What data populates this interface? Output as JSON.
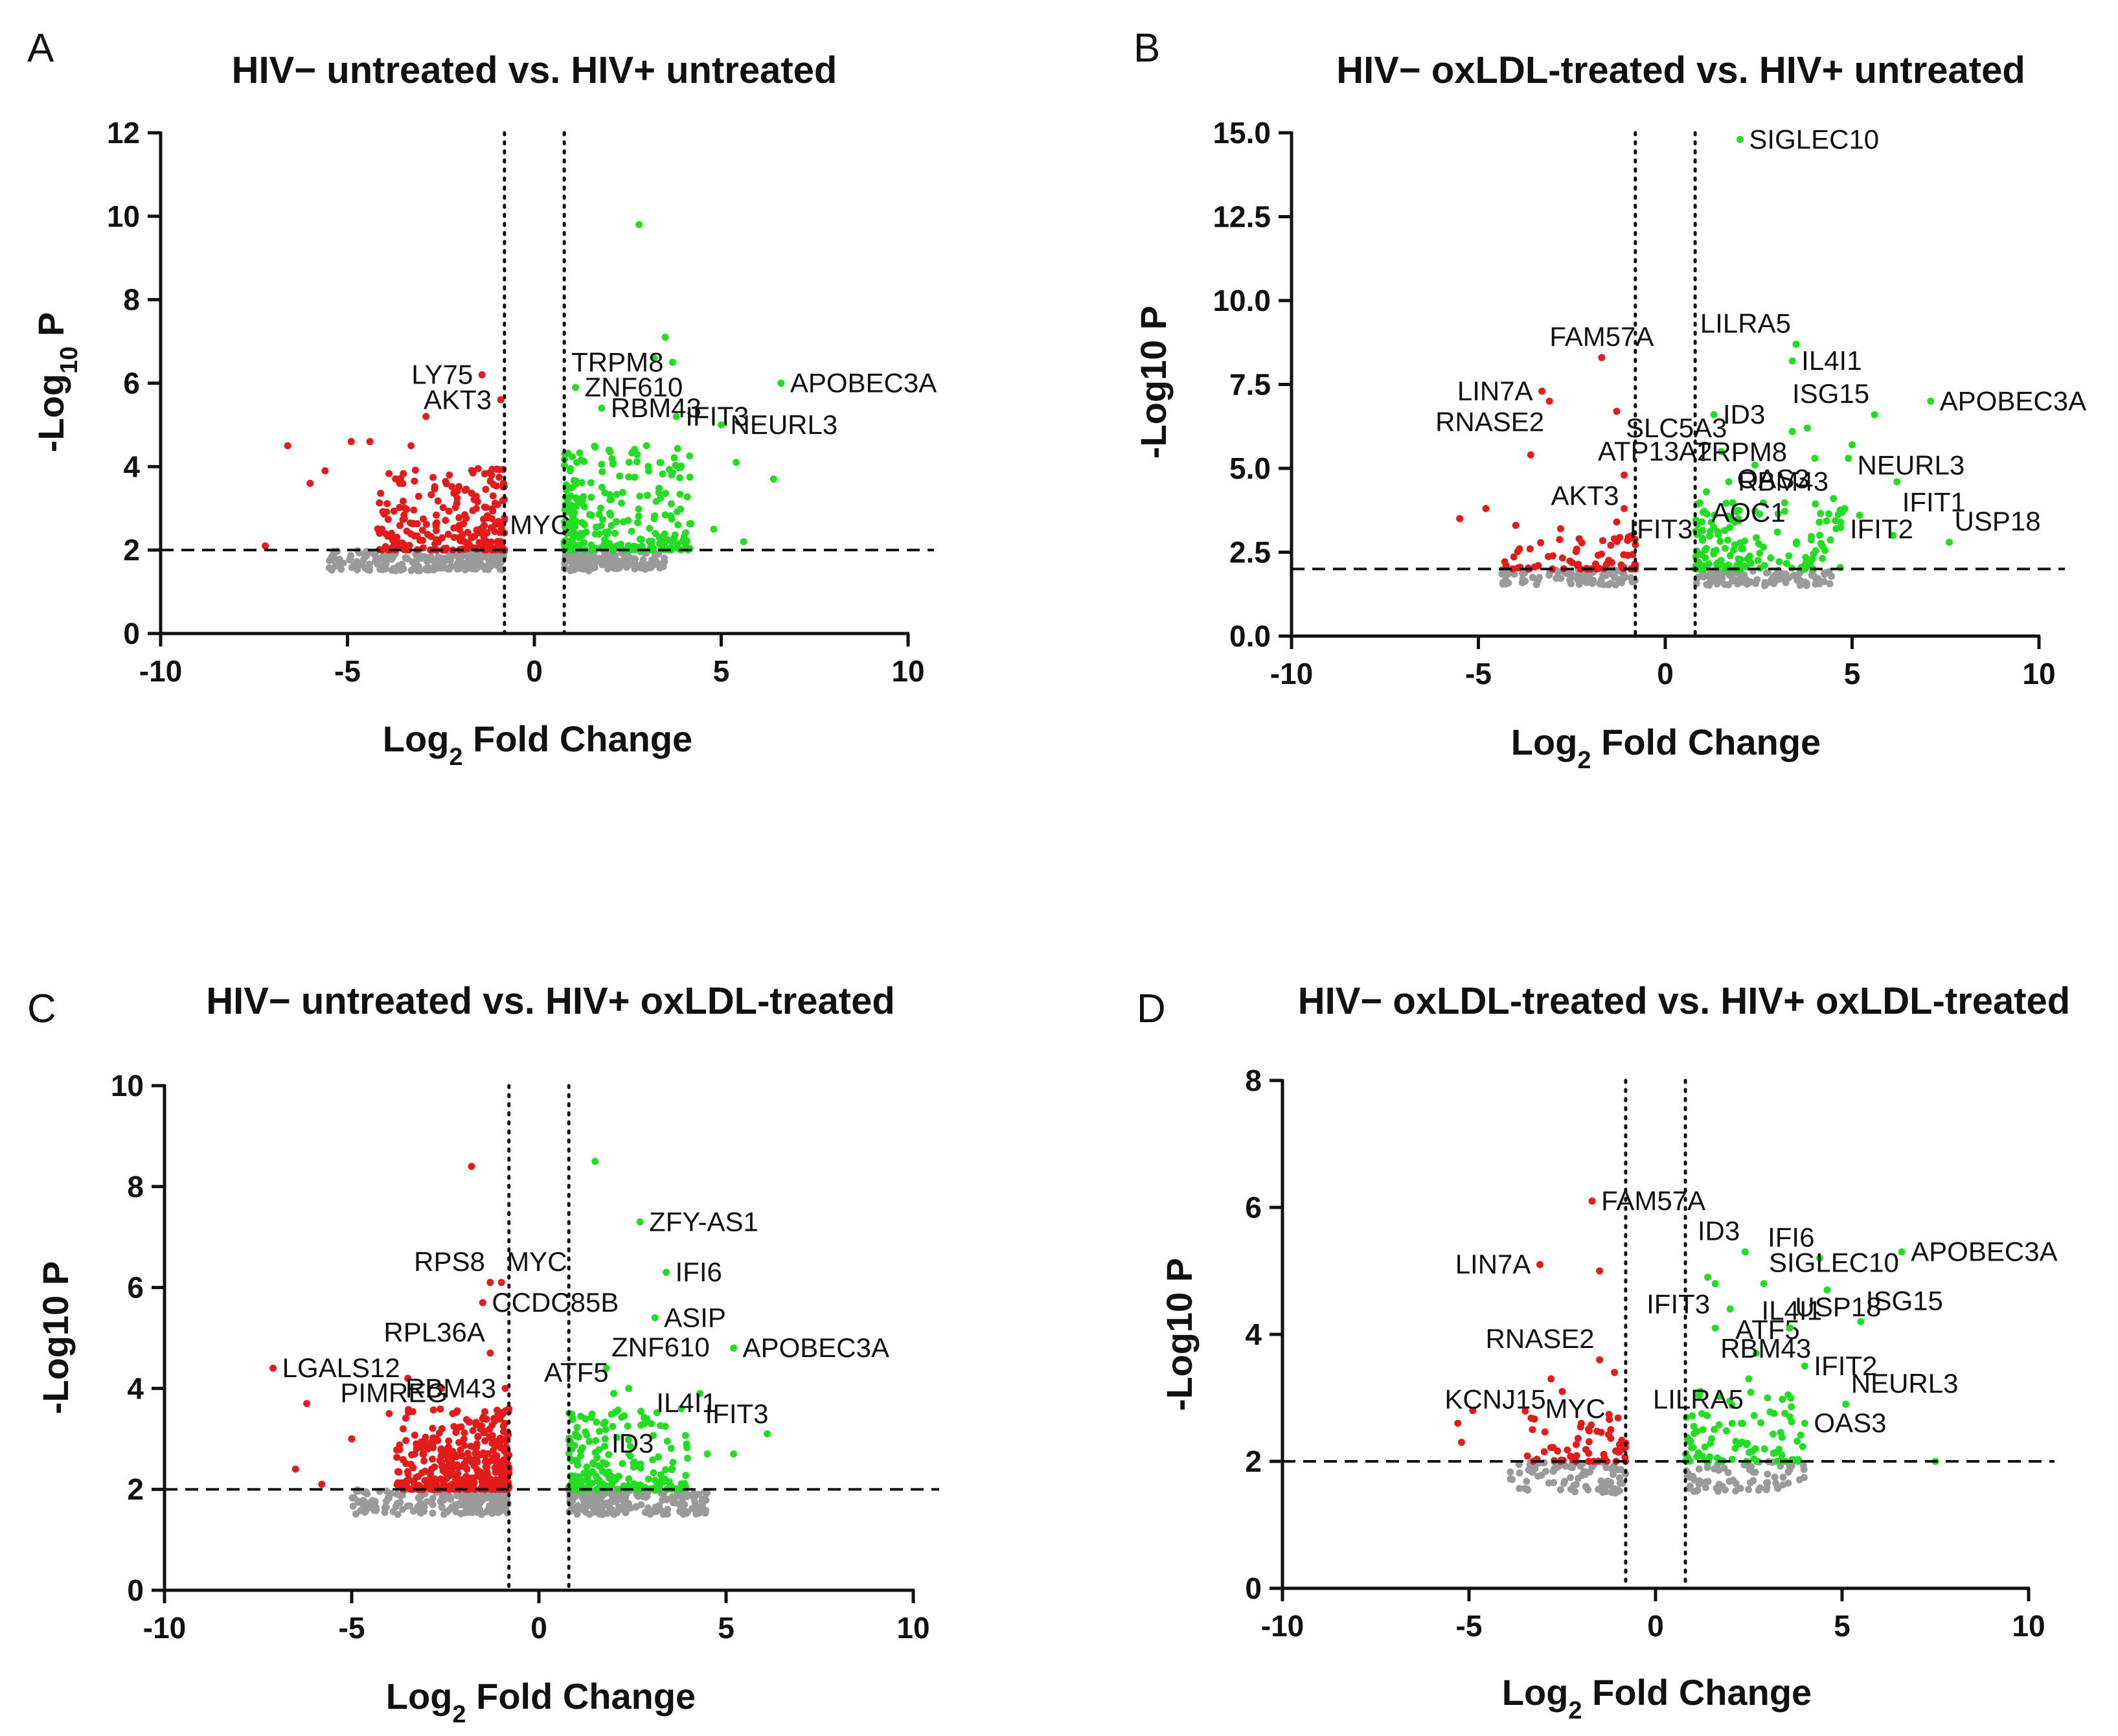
{
  "colors": {
    "up": "#22dd22",
    "down": "#e31b1b",
    "ns": "#9a9a9a",
    "axis": "#111111"
  },
  "chart_data": [
    {
      "type": "scatter",
      "id": "A",
      "panel_label": "A",
      "title": "HIV− untreated vs. HIV+ untreated",
      "xlabel_main": "Log",
      "xlabel_sub": "2",
      "xlabel_rest": " Fold Change",
      "ylabel_main": "-Log",
      "ylabel_sub": "10",
      "ylabel_rest": " P",
      "xlim": [
        -10,
        10
      ],
      "ylim": [
        0,
        12
      ],
      "xticks": [
        -10,
        -5,
        0,
        5,
        10
      ],
      "xtick_labels": [
        "-10",
        "-5",
        "0",
        "5",
        "10"
      ],
      "yticks": [
        0,
        2,
        4,
        6,
        8,
        10,
        12
      ],
      "ytick_labels": [
        "0",
        "2",
        "4",
        "6",
        "8",
        "10",
        "12"
      ],
      "threshold_fc": 0.8,
      "threshold_p": 2,
      "seed": 11,
      "labeled_points": [
        {
          "gene": "LY75",
          "x": -1.4,
          "y": 6.2,
          "dir": "down",
          "label_pos": "left"
        },
        {
          "gene": "AKT3",
          "x": -0.9,
          "y": 5.6,
          "dir": "down",
          "label_pos": "left"
        },
        {
          "gene": "MYC",
          "x": -0.9,
          "y": 2.6,
          "dir": "down",
          "label_pos": "right"
        },
        {
          "gene": "ZNF610",
          "x": 1.1,
          "y": 5.9,
          "dir": "up",
          "label_pos": "right"
        },
        {
          "gene": "TRPM8",
          "x": 3.7,
          "y": 6.5,
          "dir": "up",
          "label_pos": "left"
        },
        {
          "gene": "RBM43",
          "x": 1.8,
          "y": 5.4,
          "dir": "up",
          "label_pos": "right"
        },
        {
          "gene": "IFIT3",
          "x": 3.8,
          "y": 5.2,
          "dir": "up",
          "label_pos": "right"
        },
        {
          "gene": "APOBEC3A",
          "x": 6.6,
          "y": 6.0,
          "dir": "up",
          "label_pos": "right"
        },
        {
          "gene": "NEURL3",
          "x": 5.0,
          "y": 5.0,
          "dir": "up",
          "label_pos": "right"
        }
      ],
      "up_points": [
        [
          2.8,
          9.8
        ],
        [
          3.5,
          7.1
        ],
        [
          3.2,
          6.6
        ],
        [
          6.4,
          3.7
        ],
        [
          5.4,
          4.1
        ],
        [
          4.8,
          2.5
        ],
        [
          5.6,
          2.2
        ],
        [
          3.0,
          4.5
        ]
      ],
      "down_points": [
        [
          -6.6,
          4.5
        ],
        [
          -5.6,
          3.9
        ],
        [
          -4.9,
          4.6
        ],
        [
          -4.4,
          4.6
        ],
        [
          -3.3,
          4.5
        ],
        [
          -2.9,
          5.2
        ],
        [
          -3.6,
          3.6
        ],
        [
          -6.0,
          3.6
        ],
        [
          -7.2,
          2.1
        ]
      ],
      "counts": {
        "up": 260,
        "down": 240,
        "ns": 380
      },
      "ranges": {
        "up": [
          0.8,
          4.2,
          2.0,
          4.5
        ],
        "down": [
          -4.2,
          -0.8,
          2.0,
          4.0
        ],
        "ns": [
          -5.5,
          3.5,
          1.5,
          2.0
        ]
      }
    },
    {
      "type": "scatter",
      "id": "B",
      "panel_label": "B",
      "title": "HIV− oxLDL-treated vs. HIV+ untreated",
      "xlabel_main": "Log",
      "xlabel_sub": "2",
      "xlabel_rest": " Fold Change",
      "ylabel_main": "-Log10 P",
      "ylabel_sub": "",
      "ylabel_rest": "",
      "xlim": [
        -10,
        10
      ],
      "ylim": [
        0,
        15
      ],
      "xticks": [
        -10,
        -5,
        0,
        5,
        10
      ],
      "xtick_labels": [
        "-10",
        "-5",
        "0",
        "5",
        "10"
      ],
      "yticks": [
        0,
        2.5,
        5,
        7.5,
        10,
        12.5,
        15
      ],
      "ytick_labels": [
        "0.0",
        "2.5",
        "5.0",
        "7.5",
        "10.0",
        "12.5",
        "15.0"
      ],
      "threshold_fc": 0.8,
      "threshold_p": 2,
      "seed": 23,
      "labeled_points": [
        {
          "gene": "SIGLEC10",
          "x": 2.0,
          "y": 14.8,
          "dir": "up",
          "label_pos": "right"
        },
        {
          "gene": "FAM57A",
          "x": -1.7,
          "y": 8.3,
          "dir": "down",
          "label_pos": "above"
        },
        {
          "gene": "LIN7A",
          "x": -3.3,
          "y": 7.3,
          "dir": "down",
          "label_pos": "left"
        },
        {
          "gene": "SLC5A3",
          "x": -1.3,
          "y": 6.7,
          "dir": "down",
          "label_pos": "rightbelow"
        },
        {
          "gene": "RNASE2",
          "x": -3.1,
          "y": 7.0,
          "dir": "down",
          "label_pos": "belowleft"
        },
        {
          "gene": "LILRA5",
          "x": 3.5,
          "y": 8.7,
          "dir": "up",
          "label_pos": "aboveleft"
        },
        {
          "gene": "IL4I1",
          "x": 3.4,
          "y": 8.2,
          "dir": "up",
          "label_pos": "right"
        },
        {
          "gene": "ID3",
          "x": 1.3,
          "y": 6.6,
          "dir": "up",
          "label_pos": "right"
        },
        {
          "gene": "ISG15",
          "x": 5.6,
          "y": 6.6,
          "dir": "up",
          "label_pos": "aboveleft"
        },
        {
          "gene": "APOBEC3A",
          "x": 7.1,
          "y": 7.0,
          "dir": "up",
          "label_pos": "right"
        },
        {
          "gene": "ATP13A2",
          "x": 1.5,
          "y": 5.5,
          "dir": "up",
          "label_pos": "left"
        },
        {
          "gene": "TRPM8",
          "x": 3.4,
          "y": 6.1,
          "dir": "up",
          "label_pos": "belowleft"
        },
        {
          "gene": "NEURL3",
          "x": 5.0,
          "y": 5.7,
          "dir": "up",
          "label_pos": "belowright"
        },
        {
          "gene": "AKT3",
          "x": -1.1,
          "y": 4.8,
          "dir": "down",
          "label_pos": "belowleft"
        },
        {
          "gene": "RBM43",
          "x": 1.7,
          "y": 4.6,
          "dir": "up",
          "label_pos": "right"
        },
        {
          "gene": "OAS3",
          "x": 4.0,
          "y": 5.3,
          "dir": "up",
          "label_pos": "belowleft"
        },
        {
          "gene": "IFIT1",
          "x": 6.2,
          "y": 4.6,
          "dir": "up",
          "label_pos": "belowright"
        },
        {
          "gene": "IFIT3",
          "x": -1.1,
          "y": 3.8,
          "dir": "down",
          "label_pos": "belowright"
        },
        {
          "gene": "AOC1",
          "x": 1.1,
          "y": 4.3,
          "dir": "up",
          "label_pos": "belowright"
        },
        {
          "gene": "IFIT2",
          "x": 4.8,
          "y": 3.8,
          "dir": "up",
          "label_pos": "belowright"
        },
        {
          "gene": "USP18",
          "x": 7.6,
          "y": 2.8,
          "dir": "up",
          "label_pos": "aboveright"
        }
      ],
      "up_points": [
        [
          4.9,
          5.3
        ],
        [
          3.8,
          6.2
        ],
        [
          2.4,
          5.1
        ],
        [
          4.5,
          4.1
        ],
        [
          5.2,
          3.6
        ],
        [
          3.0,
          3.1
        ],
        [
          6.1,
          3.0
        ]
      ],
      "down_points": [
        [
          -3.6,
          5.4
        ],
        [
          -5.5,
          3.5
        ],
        [
          -4.8,
          3.8
        ],
        [
          -4.0,
          3.3
        ],
        [
          -2.8,
          3.2
        ],
        [
          -3.9,
          2.6
        ],
        [
          -1.3,
          3.4
        ]
      ],
      "counts": {
        "up": 150,
        "down": 70,
        "ns": 200
      },
      "ranges": {
        "up": [
          0.8,
          4.8,
          2.0,
          4.0
        ],
        "down": [
          -4.3,
          -0.8,
          2.0,
          3.0
        ],
        "ns": [
          -4.5,
          4.5,
          1.5,
          2.0
        ]
      }
    },
    {
      "type": "scatter",
      "id": "C",
      "panel_label": "C",
      "title": "HIV− untreated vs. HIV+ oxLDL-treated",
      "xlabel_main": "Log",
      "xlabel_sub": "2",
      "xlabel_rest": " Fold Change",
      "ylabel_main": "-Log10 P",
      "ylabel_sub": "",
      "ylabel_rest": "",
      "xlim": [
        -10,
        10
      ],
      "ylim": [
        0,
        10
      ],
      "xticks": [
        -10,
        -5,
        0,
        5,
        10
      ],
      "xtick_labels": [
        "-10",
        "-5",
        "0",
        "5",
        "10"
      ],
      "yticks": [
        0,
        2,
        4,
        6,
        8,
        10
      ],
      "ytick_labels": [
        "0",
        "2",
        "4",
        "6",
        "8",
        "10"
      ],
      "threshold_fc": 0.8,
      "threshold_p": 2,
      "seed": 37,
      "labeled_points": [
        {
          "gene": "ZFY-AS1",
          "x": 2.7,
          "y": 7.3,
          "dir": "up",
          "label_pos": "right"
        },
        {
          "gene": "RPS8",
          "x": -1.3,
          "y": 6.1,
          "dir": "down",
          "label_pos": "aboveleft"
        },
        {
          "gene": "MYC",
          "x": -1.0,
          "y": 6.1,
          "dir": "down",
          "label_pos": "aboveright"
        },
        {
          "gene": "IFI6",
          "x": 3.4,
          "y": 6.3,
          "dir": "up",
          "label_pos": "right"
        },
        {
          "gene": "CCDC85B",
          "x": -1.5,
          "y": 5.7,
          "dir": "down",
          "label_pos": "right"
        },
        {
          "gene": "ASIP",
          "x": 3.1,
          "y": 5.4,
          "dir": "up",
          "label_pos": "right"
        },
        {
          "gene": "LGALS12",
          "x": -7.1,
          "y": 4.4,
          "dir": "down",
          "label_pos": "right"
        },
        {
          "gene": "RPL36A",
          "x": -1.3,
          "y": 4.7,
          "dir": "down",
          "label_pos": "aboveleft"
        },
        {
          "gene": "ZNF610",
          "x": 1.8,
          "y": 4.4,
          "dir": "up",
          "label_pos": "aboveright"
        },
        {
          "gene": "APOBEC3A",
          "x": 5.2,
          "y": 4.8,
          "dir": "up",
          "label_pos": "right"
        },
        {
          "gene": "PIMREG",
          "x": -2.3,
          "y": 3.5,
          "dir": "down",
          "label_pos": "aboveleft"
        },
        {
          "gene": "RBM43",
          "x": -0.9,
          "y": 4.0,
          "dir": "down",
          "label_pos": "left"
        },
        {
          "gene": "ATF5",
          "x": 2.0,
          "y": 3.9,
          "dir": "up",
          "label_pos": "aboveleft"
        },
        {
          "gene": "IFIT3",
          "x": 4.3,
          "y": 3.9,
          "dir": "up",
          "label_pos": "belowright"
        },
        {
          "gene": "IL4I1",
          "x": 3.0,
          "y": 3.3,
          "dir": "up",
          "label_pos": "aboveright"
        },
        {
          "gene": "ID3",
          "x": 1.8,
          "y": 2.5,
          "dir": "up",
          "label_pos": "aboveright"
        }
      ],
      "up_points": [
        [
          1.5,
          8.5
        ],
        [
          6.1,
          3.1
        ],
        [
          4.5,
          2.7
        ],
        [
          5.2,
          2.7
        ],
        [
          2.4,
          4.0
        ],
        [
          3.8,
          3.6
        ]
      ],
      "down_points": [
        [
          -1.8,
          8.4
        ],
        [
          -6.2,
          3.7
        ],
        [
          -5.0,
          3.0
        ],
        [
          -4.0,
          3.5
        ],
        [
          -6.5,
          2.4
        ],
        [
          -5.8,
          2.1
        ],
        [
          -3.5,
          4.2
        ],
        [
          -2.6,
          4.0
        ]
      ],
      "counts": {
        "up": 200,
        "down": 420,
        "ns": 420
      },
      "ranges": {
        "up": [
          0.8,
          4.0,
          2.0,
          3.6
        ],
        "down": [
          -3.8,
          -0.8,
          2.0,
          3.6
        ],
        "ns": [
          -5.0,
          4.5,
          1.5,
          2.0
        ]
      }
    },
    {
      "type": "scatter",
      "id": "D",
      "panel_label": "D",
      "title": "HIV− oxLDL-treated vs. HIV+ oxLDL-treated",
      "xlabel_main": "Log",
      "xlabel_sub": "2",
      "xlabel_rest": " Fold Change",
      "ylabel_main": "-Log10 P",
      "ylabel_sub": "",
      "ylabel_rest": "",
      "xlim": [
        -10,
        10
      ],
      "ylim": [
        0,
        8
      ],
      "xticks": [
        -10,
        -5,
        0,
        5,
        10
      ],
      "xtick_labels": [
        "-10",
        "-5",
        "0",
        "5",
        "10"
      ],
      "yticks": [
        0,
        2,
        4,
        6,
        8
      ],
      "ytick_labels": [
        "0",
        "2",
        "4",
        "6",
        "8"
      ],
      "threshold_fc": 0.8,
      "threshold_p": 2,
      "seed": 53,
      "labeled_points": [
        {
          "gene": "FAM57A",
          "x": -1.7,
          "y": 6.1,
          "dir": "down",
          "label_pos": "right"
        },
        {
          "gene": "ID3",
          "x": 2.4,
          "y": 5.3,
          "dir": "up",
          "label_pos": "aboveleft"
        },
        {
          "gene": "IFI6",
          "x": 4.4,
          "y": 5.2,
          "dir": "up",
          "label_pos": "aboveleft"
        },
        {
          "gene": "APOBEC3A",
          "x": 6.6,
          "y": 5.3,
          "dir": "up",
          "label_pos": "right"
        },
        {
          "gene": "LIN7A",
          "x": -3.1,
          "y": 5.1,
          "dir": "down",
          "label_pos": "left"
        },
        {
          "gene": "SIGLEC10",
          "x": 2.9,
          "y": 4.8,
          "dir": "up",
          "label_pos": "aboveright"
        },
        {
          "gene": "IFIT3",
          "x": 1.6,
          "y": 4.8,
          "dir": "up",
          "label_pos": "belowleft"
        },
        {
          "gene": "ATF5",
          "x": 2.0,
          "y": 4.4,
          "dir": "up",
          "label_pos": "belowright"
        },
        {
          "gene": "IL4I1",
          "x": 4.6,
          "y": 4.7,
          "dir": "up",
          "label_pos": "belowleft"
        },
        {
          "gene": "ISG15",
          "x": 5.5,
          "y": 4.2,
          "dir": "up",
          "label_pos": "aboveright"
        },
        {
          "gene": "RNASE2",
          "x": -1.5,
          "y": 3.6,
          "dir": "down",
          "label_pos": "aboveleft"
        },
        {
          "gene": "RBM43",
          "x": 1.6,
          "y": 4.1,
          "dir": "up",
          "label_pos": "belowright"
        },
        {
          "gene": "USP18",
          "x": 3.6,
          "y": 4.1,
          "dir": "up",
          "label_pos": "aboveright"
        },
        {
          "gene": "IFIT2",
          "x": 4.0,
          "y": 3.5,
          "dir": "up",
          "label_pos": "right"
        },
        {
          "gene": "KCNJ15",
          "x": -2.8,
          "y": 3.3,
          "dir": "down",
          "label_pos": "belowleft"
        },
        {
          "gene": "LILRA5",
          "x": 2.5,
          "y": 3.3,
          "dir": "up",
          "label_pos": "belowleft"
        },
        {
          "gene": "NEURL3",
          "x": 5.1,
          "y": 2.9,
          "dir": "up",
          "label_pos": "aboveright"
        },
        {
          "gene": "MYC",
          "x": -1.2,
          "y": 2.5,
          "dir": "down",
          "label_pos": "aboveleft"
        },
        {
          "gene": "OAS3",
          "x": 4.0,
          "y": 2.6,
          "dir": "up",
          "label_pos": "right"
        }
      ],
      "up_points": [
        [
          1.4,
          4.9
        ],
        [
          2.7,
          3.7
        ],
        [
          3.0,
          3.0
        ],
        [
          3.6,
          2.7
        ],
        [
          7.5,
          2.0
        ],
        [
          2.3,
          2.6
        ],
        [
          1.2,
          3.1
        ]
      ],
      "down_points": [
        [
          -1.5,
          5.0
        ],
        [
          -5.3,
          2.6
        ],
        [
          -4.9,
          2.8
        ],
        [
          -3.3,
          2.5
        ],
        [
          -2.5,
          3.1
        ],
        [
          -1.1,
          3.4
        ],
        [
          -5.2,
          2.3
        ]
      ],
      "counts": {
        "up": 90,
        "down": 60,
        "ns": 160
      },
      "ranges": {
        "up": [
          0.8,
          4.0,
          2.0,
          3.2
        ],
        "down": [
          -3.6,
          -0.8,
          2.0,
          2.8
        ],
        "ns": [
          -4.0,
          4.0,
          1.5,
          2.0
        ]
      }
    }
  ]
}
